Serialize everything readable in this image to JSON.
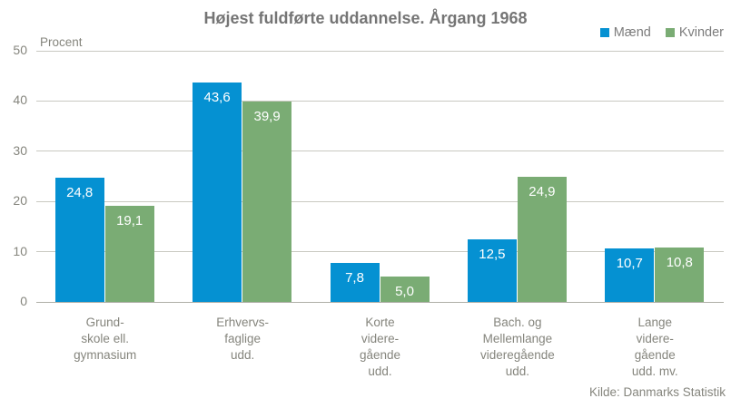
{
  "title": "Højest fuldførte uddannelse. Årgang 1968",
  "source": "Kilde: Danmarks Statistik",
  "colors": {
    "maend": "#0591D2",
    "kvinder": "#7AAC74",
    "grid": "#C9C9C1",
    "axis_text": "#85857D",
    "title_text": "#757575",
    "value_label": "#FFFFFF"
  },
  "chart_data": {
    "type": "bar",
    "title": "Højest fuldførte uddannelse. Årgang 1968",
    "xlabel": "",
    "ylabel": "Procent",
    "ylim": [
      0,
      50
    ],
    "yticks": [
      0,
      10,
      20,
      30,
      40,
      50
    ],
    "grid": true,
    "legend_position": "top-right",
    "categories": [
      [
        "Grund-",
        "skole ell.",
        "gymnasium"
      ],
      [
        "Erhvervs-",
        "faglige",
        "udd."
      ],
      [
        "Korte",
        "videre-",
        "gående",
        "udd."
      ],
      [
        "Bach. og",
        "Mellemlange",
        "videregående",
        "udd."
      ],
      [
        "Lange",
        "videre-",
        "gående",
        "udd. mv."
      ]
    ],
    "series": [
      {
        "name": "Mænd",
        "color": "#0591D2",
        "values": [
          24.8,
          43.6,
          7.8,
          12.5,
          10.7
        ],
        "labels": [
          "24,8",
          "43,6",
          "7,8",
          "12,5",
          "10,7"
        ]
      },
      {
        "name": "Kvinder",
        "color": "#7AAC74",
        "values": [
          19.1,
          39.9,
          5.0,
          24.9,
          10.8
        ],
        "labels": [
          "19,1",
          "39,9",
          "5,0",
          "24,9",
          "10,8"
        ]
      }
    ]
  }
}
